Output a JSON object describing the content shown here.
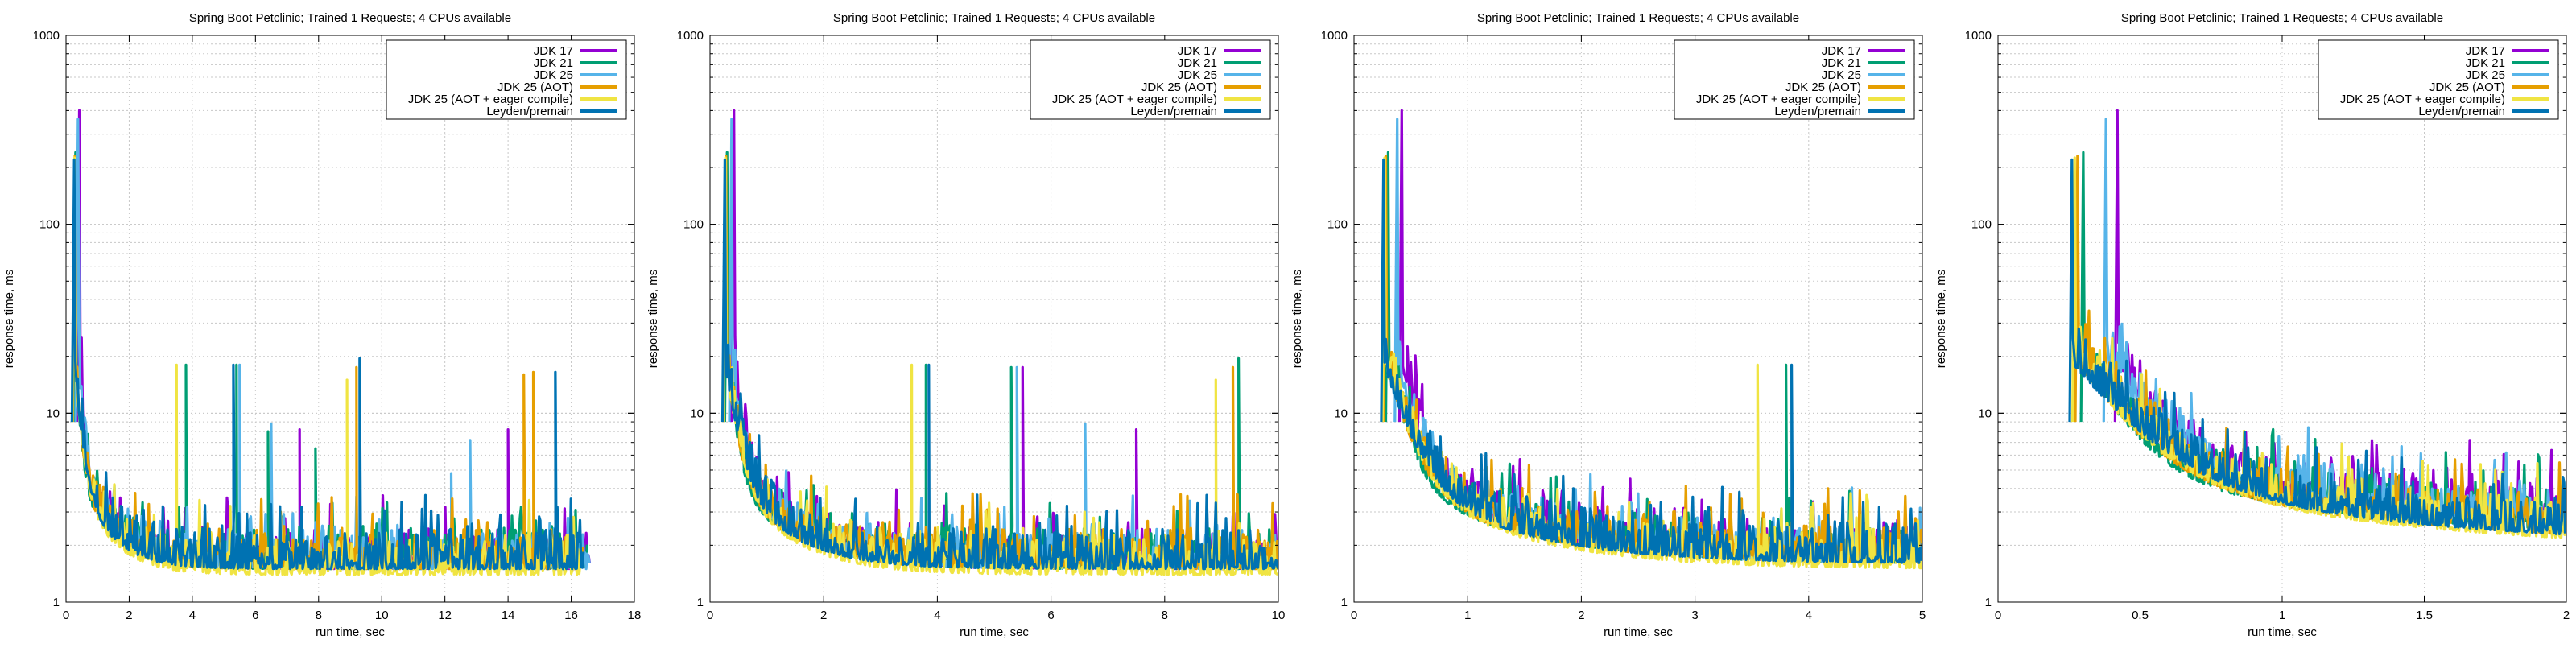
{
  "figure": {
    "colors": {
      "JDK 17": "#9400d3",
      "JDK 21": "#009e73",
      "JDK 25": "#56b4e9",
      "JDK 25 (AOT)": "#e69f00",
      "JDK 25 (AOT + eager compile)": "#f0e442",
      "Leyden/premain": "#0072b2"
    }
  },
  "chart_data": [
    {
      "type": "line",
      "title": "Spring Boot Petclinic; Trained 1 Requests; 4 CPUs available",
      "xlabel": "run time, sec",
      "ylabel": "response time, ms",
      "xlim": [
        0,
        18
      ],
      "xticks": [
        0,
        2,
        4,
        6,
        8,
        10,
        12,
        14,
        16,
        18
      ],
      "ylim": [
        1,
        1000
      ],
      "yscale": "log",
      "yticks": [
        1,
        10,
        100,
        1000
      ],
      "grid": true,
      "legend": "top-right",
      "series": [
        {
          "name": "JDK 17",
          "start": 0.42,
          "peak": 400,
          "plateau": 1.5,
          "end": 16.6,
          "spikes": [
            [
              7.4,
              8.2
            ],
            [
              14.0,
              8.2
            ]
          ]
        },
        {
          "name": "JDK 21",
          "start": 0.3,
          "peak": 240,
          "plateau": 1.5,
          "end": 16.5,
          "spikes": [
            [
              3.8,
              18
            ],
            [
              5.4,
              18
            ],
            [
              6.4,
              8.0
            ],
            [
              7.9,
              6.5
            ]
          ]
        },
        {
          "name": "JDK 25",
          "start": 0.38,
          "peak": 360,
          "plateau": 1.5,
          "end": 16.6,
          "spikes": [
            [
              5.5,
              18
            ],
            [
              6.5,
              8.8
            ],
            [
              12.2,
              4.8
            ],
            [
              12.8,
              7.2
            ],
            [
              15.5,
              16.5
            ]
          ]
        },
        {
          "name": "JDK 25 (AOT)",
          "start": 0.28,
          "peak": 230,
          "plateau": 1.5,
          "end": 16.4,
          "spikes": [
            [
              9.2,
              17.5
            ],
            [
              14.5,
              16.0
            ],
            [
              14.8,
              16.5
            ]
          ]
        },
        {
          "name": "JDK 25 (AOT + eager compile)",
          "start": 0.27,
          "peak": 225,
          "plateau": 1.4,
          "end": 16.3,
          "spikes": [
            [
              3.5,
              18
            ],
            [
              8.9,
              15.0
            ]
          ]
        },
        {
          "name": "Leyden/premain",
          "start": 0.26,
          "peak": 220,
          "plateau": 1.5,
          "end": 16.4,
          "spikes": [
            [
              5.3,
              18
            ],
            [
              9.3,
              19.5
            ],
            [
              15.5,
              16.5
            ]
          ]
        }
      ]
    },
    {
      "type": "line",
      "title": "Spring Boot Petclinic; Trained 1 Requests; 4 CPUs available",
      "xlabel": "run time, sec",
      "ylabel": "response time, ms",
      "xlim": [
        0,
        10
      ],
      "xticks": [
        0,
        2,
        4,
        6,
        8,
        10
      ],
      "ylim": [
        1,
        1000
      ],
      "yscale": "log",
      "yticks": [
        1,
        10,
        100,
        1000
      ],
      "grid": true,
      "legend": "top-right",
      "series": [
        {
          "name": "JDK 17",
          "start": 0.42,
          "peak": 400,
          "plateau": 1.5,
          "end": 10,
          "spikes": [
            [
              5.5,
              17.5
            ],
            [
              7.5,
              8.2
            ]
          ]
        },
        {
          "name": "JDK 21",
          "start": 0.3,
          "peak": 240,
          "plateau": 1.5,
          "end": 10,
          "spikes": [
            [
              3.8,
              18
            ],
            [
              5.3,
              17.5
            ],
            [
              9.3,
              19.5
            ]
          ]
        },
        {
          "name": "JDK 25",
          "start": 0.38,
          "peak": 360,
          "plateau": 1.5,
          "end": 10,
          "spikes": [
            [
              5.4,
              17.5
            ],
            [
              6.6,
              8.8
            ]
          ]
        },
        {
          "name": "JDK 25 (AOT)",
          "start": 0.28,
          "peak": 230,
          "plateau": 1.5,
          "end": 10,
          "spikes": [
            [
              9.2,
              17.5
            ]
          ]
        },
        {
          "name": "JDK 25 (AOT + eager compile)",
          "start": 0.27,
          "peak": 225,
          "plateau": 1.4,
          "end": 10,
          "spikes": [
            [
              3.55,
              18
            ],
            [
              8.9,
              15.0
            ]
          ]
        },
        {
          "name": "Leyden/premain",
          "start": 0.26,
          "peak": 220,
          "plateau": 1.5,
          "end": 10,
          "spikes": [
            [
              3.85,
              18
            ]
          ]
        }
      ]
    },
    {
      "type": "line",
      "title": "Spring Boot Petclinic; Trained 1 Requests; 4 CPUs available",
      "xlabel": "run time, sec",
      "ylabel": "response time, ms",
      "xlim": [
        0,
        5
      ],
      "xticks": [
        0,
        1,
        2,
        3,
        4,
        5
      ],
      "ylim": [
        1,
        1000
      ],
      "yscale": "log",
      "yticks": [
        1,
        10,
        100,
        1000
      ],
      "grid": true,
      "legend": "top-right",
      "series": [
        {
          "name": "JDK 17",
          "start": 0.42,
          "peak": 400,
          "plateau": 1.6,
          "end": 5,
          "spikes": []
        },
        {
          "name": "JDK 21",
          "start": 0.3,
          "peak": 240,
          "plateau": 1.6,
          "end": 5,
          "spikes": [
            [
              3.8,
              18
            ]
          ]
        },
        {
          "name": "JDK 25",
          "start": 0.38,
          "peak": 360,
          "plateau": 1.6,
          "end": 5,
          "spikes": []
        },
        {
          "name": "JDK 25 (AOT)",
          "start": 0.28,
          "peak": 230,
          "plateau": 1.6,
          "end": 5,
          "spikes": []
        },
        {
          "name": "JDK 25 (AOT + eager compile)",
          "start": 0.27,
          "peak": 225,
          "plateau": 1.5,
          "end": 5,
          "spikes": [
            [
              3.55,
              18
            ]
          ]
        },
        {
          "name": "Leyden/premain",
          "start": 0.26,
          "peak": 220,
          "plateau": 1.6,
          "end": 5,
          "spikes": [
            [
              3.85,
              18
            ]
          ]
        }
      ]
    },
    {
      "type": "line",
      "title": "Spring Boot Petclinic; Trained 1 Requests; 4 CPUs available",
      "xlabel": "run time, sec",
      "ylabel": "response time, ms",
      "xlim": [
        0,
        2
      ],
      "xticks": [
        0,
        0.5,
        1,
        1.5,
        2
      ],
      "ylim": [
        1,
        1000
      ],
      "yscale": "log",
      "yticks": [
        1,
        10,
        100,
        1000
      ],
      "grid": true,
      "legend": "top-right",
      "series": [
        {
          "name": "JDK 17",
          "start": 0.42,
          "peak": 400,
          "plateau": 2.3,
          "end": 2,
          "spikes": []
        },
        {
          "name": "JDK 21",
          "start": 0.3,
          "peak": 240,
          "plateau": 2.0,
          "end": 2,
          "spikes": []
        },
        {
          "name": "JDK 25",
          "start": 0.38,
          "peak": 360,
          "plateau": 2.2,
          "end": 2,
          "spikes": []
        },
        {
          "name": "JDK 25 (AOT)",
          "start": 0.28,
          "peak": 230,
          "plateau": 1.9,
          "end": 2,
          "spikes": []
        },
        {
          "name": "JDK 25 (AOT + eager compile)",
          "start": 0.27,
          "peak": 225,
          "plateau": 1.8,
          "end": 2,
          "spikes": []
        },
        {
          "name": "Leyden/premain",
          "start": 0.26,
          "peak": 220,
          "plateau": 1.9,
          "end": 2,
          "spikes": []
        }
      ]
    }
  ]
}
